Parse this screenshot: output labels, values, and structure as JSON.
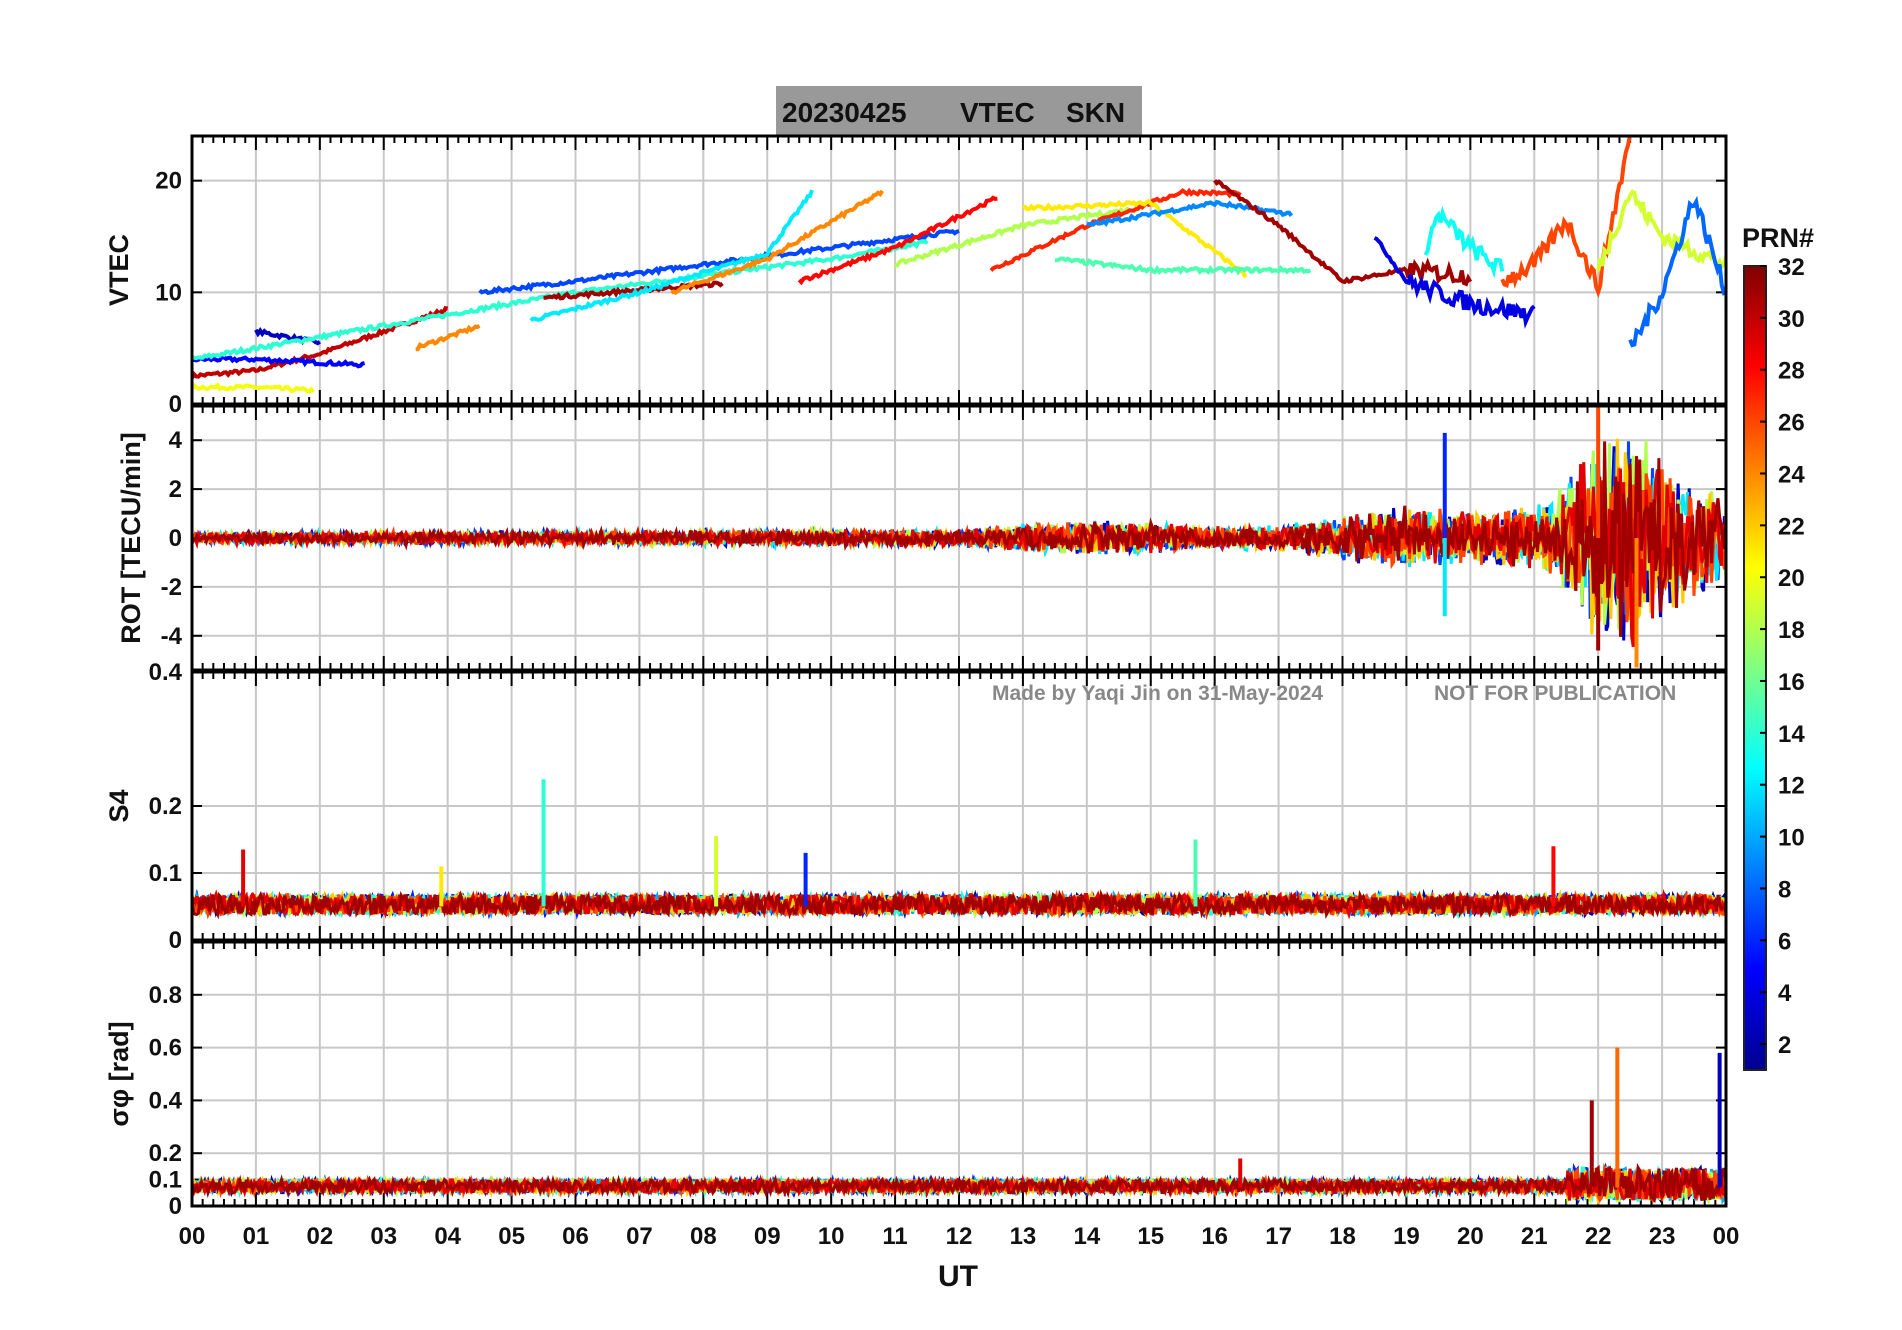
{
  "figure": {
    "title_date": "20230425",
    "title_param": "VTEC",
    "title_station": "SKN",
    "watermark_left": "Made by Yaqi Jin on 31-May-2024",
    "watermark_right": "NOT FOR PUBLICATION",
    "xlabel": "UT"
  },
  "colorbar": {
    "label": "PRN#",
    "ticks": [
      "2",
      "4",
      "6",
      "8",
      "10",
      "12",
      "14",
      "16",
      "18",
      "20",
      "22",
      "24",
      "26",
      "28",
      "30",
      "32"
    ],
    "range": [
      1,
      32
    ],
    "colormap": "jet"
  },
  "chart_data": [
    {
      "type": "line",
      "panel": "VTEC",
      "ylabel": "VTEC",
      "ylim": [
        0,
        24
      ],
      "yticks": [
        "0",
        "10",
        "20"
      ],
      "x_unit": "UT hours",
      "series": [
        {
          "prn": 30,
          "x": [
            0.0,
            1.0,
            2.0,
            3.0,
            4.0
          ],
          "y": [
            2.5,
            3.0,
            4.5,
            6.5,
            8.5
          ]
        },
        {
          "prn": 3,
          "x": [
            1.0,
            1.5,
            2.0
          ],
          "y": [
            6.5,
            6.0,
            5.5
          ]
        },
        {
          "prn": 5,
          "x": [
            0.0,
            1.0,
            2.7
          ],
          "y": [
            4.0,
            4.0,
            3.5
          ]
        },
        {
          "prn": 20,
          "x": [
            0.0,
            1.0,
            1.9
          ],
          "y": [
            1.5,
            1.5,
            1.2
          ]
        },
        {
          "prn": 14,
          "x": [
            0.0,
            2.0,
            4.0,
            6.0,
            8.0,
            10.0,
            11.5
          ],
          "y": [
            4.0,
            6.0,
            8.0,
            10.0,
            11.5,
            13.0,
            14.5
          ]
        },
        {
          "prn": 24,
          "x": [
            3.5,
            4.5
          ],
          "y": [
            5.0,
            7.0
          ]
        },
        {
          "prn": 7,
          "x": [
            4.5,
            6.0,
            8.0,
            10.0,
            12.0
          ],
          "y": [
            10.0,
            11.0,
            12.5,
            14.0,
            15.5
          ]
        },
        {
          "prn": 31,
          "x": [
            5.5,
            7.0,
            8.3
          ],
          "y": [
            9.5,
            10.2,
            10.8
          ]
        },
        {
          "prn": 12,
          "x": [
            5.3,
            7.0,
            9.0,
            9.7
          ],
          "y": [
            7.5,
            10.0,
            13.5,
            19.0
          ]
        },
        {
          "prn": 24,
          "x": [
            7.5,
            9.0,
            10.8
          ],
          "y": [
            10.0,
            13.0,
            19.0
          ]
        },
        {
          "prn": 28,
          "x": [
            9.5,
            11.0,
            12.6
          ],
          "y": [
            11.0,
            14.0,
            18.5
          ]
        },
        {
          "prn": 18,
          "x": [
            11.0,
            13.0,
            14.8
          ],
          "y": [
            12.5,
            16.0,
            17.5
          ]
        },
        {
          "prn": 27,
          "x": [
            12.5,
            14.0,
            15.5,
            16.4
          ],
          "y": [
            12.0,
            16.0,
            19.0,
            18.8
          ]
        },
        {
          "prn": 21,
          "x": [
            13.0,
            15.0,
            16.5
          ],
          "y": [
            17.5,
            18.0,
            11.5
          ]
        },
        {
          "prn": 15,
          "x": [
            13.5,
            15.0,
            17.5
          ],
          "y": [
            13.0,
            12.0,
            12.0
          ]
        },
        {
          "prn": 9,
          "x": [
            14.0,
            16.0,
            17.2
          ],
          "y": [
            16.0,
            18.0,
            17.0
          ]
        },
        {
          "prn": 31,
          "x": [
            16.0,
            17.0,
            18.0,
            19.0,
            20.0
          ],
          "y": [
            20.0,
            16.0,
            11.0,
            12.0,
            11.5
          ]
        },
        {
          "prn": 4,
          "x": [
            18.5,
            19.0,
            20.0,
            21.0
          ],
          "y": [
            15.0,
            11.0,
            9.0,
            8.0
          ]
        },
        {
          "prn": 13,
          "x": [
            19.3,
            19.5,
            20.0,
            20.5
          ],
          "y": [
            14.0,
            17.0,
            14.0,
            12.0
          ]
        },
        {
          "prn": 26,
          "x": [
            20.5,
            21.0,
            21.5,
            22.0,
            22.5
          ],
          "y": [
            11.0,
            12.5,
            16.5,
            10.5,
            24.0
          ]
        },
        {
          "prn": 19,
          "x": [
            22.0,
            22.5,
            23.0,
            24.0
          ],
          "y": [
            12.0,
            19.0,
            15.0,
            12.5
          ]
        },
        {
          "prn": 8,
          "x": [
            22.5,
            23.0,
            23.5,
            24.0
          ],
          "y": [
            5.0,
            10.0,
            18.5,
            10.0
          ]
        }
      ]
    },
    {
      "type": "line",
      "panel": "ROT",
      "ylabel": "ROT [TECU/min]",
      "ylim": [
        -5.4,
        5.4
      ],
      "yticks": [
        "-4",
        "-2",
        "0",
        "2",
        "4"
      ],
      "x_unit": "UT hours",
      "envelope": {
        "x": [
          0,
          4,
          8,
          12,
          13,
          14,
          16,
          17,
          18,
          19,
          20,
          21,
          21.5,
          22,
          22.5,
          23,
          24
        ],
        "amplitude": [
          0.25,
          0.3,
          0.35,
          0.4,
          0.6,
          0.8,
          0.5,
          0.6,
          1.0,
          1.4,
          1.2,
          1.4,
          2.5,
          4.5,
          4.8,
          3.5,
          2.0
        ]
      },
      "spikes": [
        {
          "prn": 6,
          "x": 19.6,
          "y": 4.3
        },
        {
          "prn": 12,
          "x": 19.6,
          "y": -3.2
        },
        {
          "prn": 26,
          "x": 22.0,
          "y": 5.4
        },
        {
          "prn": 31,
          "x": 22.0,
          "y": -4.6
        },
        {
          "prn": 24,
          "x": 22.6,
          "y": -5.3
        }
      ]
    },
    {
      "type": "line",
      "panel": "S4",
      "ylabel": "S4",
      "ylim": [
        0,
        0.4
      ],
      "yticks": [
        "0",
        "0.1",
        "0.2",
        "0.4"
      ],
      "x_unit": "UT hours",
      "baseline": 0.05,
      "noise": 0.03,
      "spikes": [
        {
          "prn": 14,
          "x": 5.5,
          "y": 0.24
        },
        {
          "prn": 19,
          "x": 8.2,
          "y": 0.155
        },
        {
          "prn": 15,
          "x": 15.7,
          "y": 0.15
        },
        {
          "prn": 29,
          "x": 0.8,
          "y": 0.135
        },
        {
          "prn": 28,
          "x": 21.3,
          "y": 0.14
        },
        {
          "prn": 6,
          "x": 9.6,
          "y": 0.13
        },
        {
          "prn": 21,
          "x": 3.9,
          "y": 0.11
        }
      ]
    },
    {
      "type": "line",
      "panel": "sigma_phi",
      "ylabel": "σφ [rad]",
      "ylim": [
        0,
        1.0
      ],
      "yticks": [
        "0",
        "0.1",
        "0.2",
        "0.4",
        "0.6",
        "0.8"
      ],
      "x_unit": "UT hours",
      "baseline": 0.07,
      "noise": 0.05,
      "spikes": [
        {
          "prn": 25,
          "x": 22.3,
          "y": 0.6
        },
        {
          "prn": 31,
          "x": 21.9,
          "y": 0.4
        },
        {
          "prn": 3,
          "x": 23.9,
          "y": 0.58
        },
        {
          "prn": 29,
          "x": 16.4,
          "y": 0.18
        }
      ]
    }
  ],
  "xaxis": {
    "range": [
      0,
      24
    ],
    "ticks": [
      "00",
      "01",
      "02",
      "03",
      "04",
      "05",
      "06",
      "07",
      "08",
      "09",
      "10",
      "11",
      "12",
      "13",
      "14",
      "15",
      "16",
      "17",
      "18",
      "19",
      "20",
      "21",
      "22",
      "23",
      "00"
    ]
  }
}
